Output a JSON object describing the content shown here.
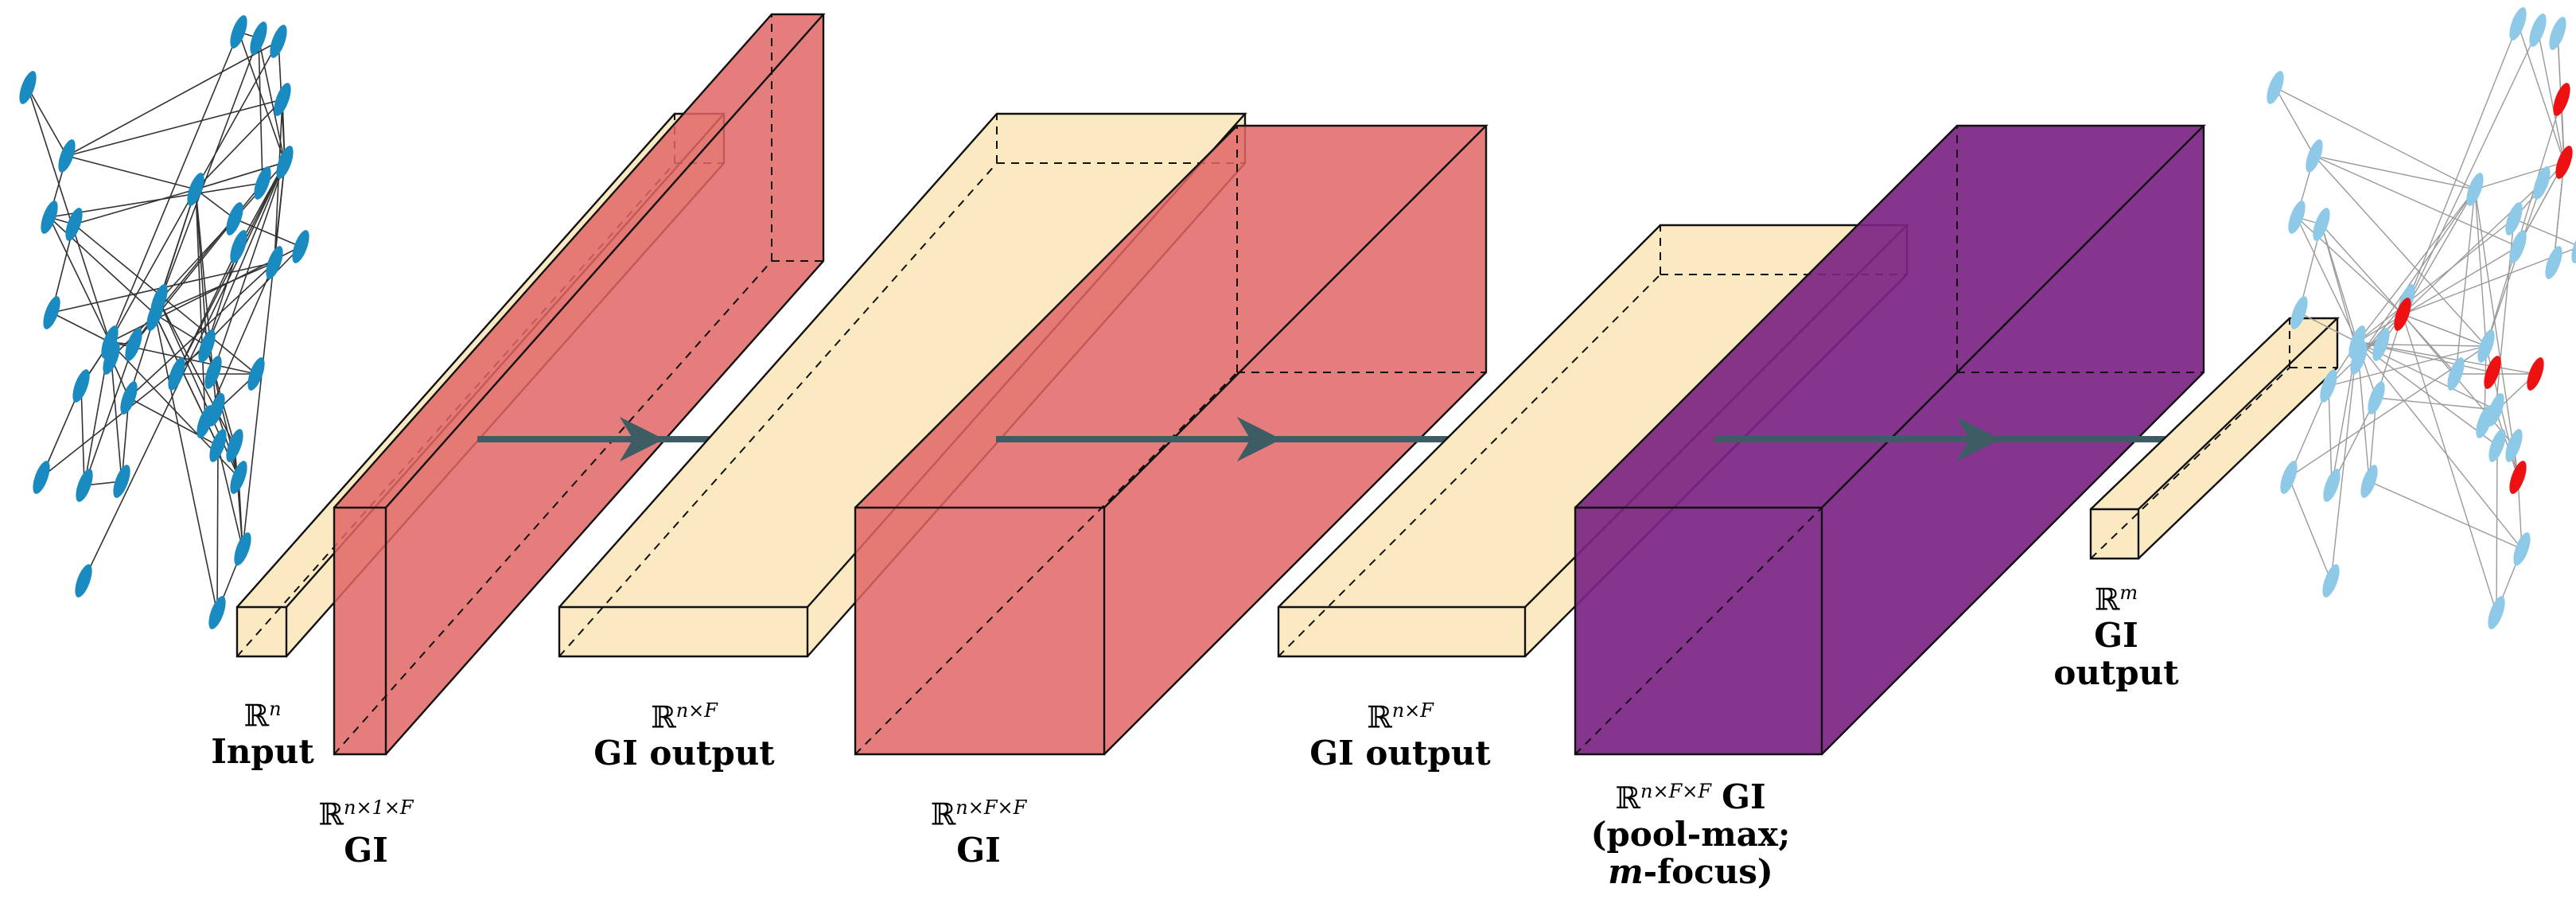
{
  "diagram": {
    "type": "neural-network-architecture",
    "colors": {
      "input_box": "#fbe9c2",
      "gi_layer": "#e06666",
      "pool_layer": "#7b2483",
      "arrow": "#3d5c64",
      "graph_in_node": "#1a8bc0",
      "graph_out_node": "#8ec9e8",
      "graph_out_highlight": "#ee1111",
      "edge": "#333333"
    },
    "labels": {
      "input": {
        "space": "ℝ",
        "exp": "n",
        "name": "Input"
      },
      "gi1": {
        "space": "ℝ",
        "exp": "n×1×F",
        "name": "GI"
      },
      "out1": {
        "space": "ℝ",
        "exp": "n×F",
        "name": "GI output"
      },
      "gi2": {
        "space": "ℝ",
        "exp": "n×F×F",
        "name": "GI"
      },
      "out2": {
        "space": "ℝ",
        "exp": "n×F",
        "name": "GI output"
      },
      "gi3": {
        "space": "ℝ",
        "exp": "n×F×F",
        "name": "GI",
        "line2": "(pool-max;",
        "line3_italic": "m",
        "line3_rest": "-focus)"
      },
      "final": {
        "space": "ℝ",
        "exp": "m",
        "name": "GI",
        "line2": "output"
      }
    }
  }
}
